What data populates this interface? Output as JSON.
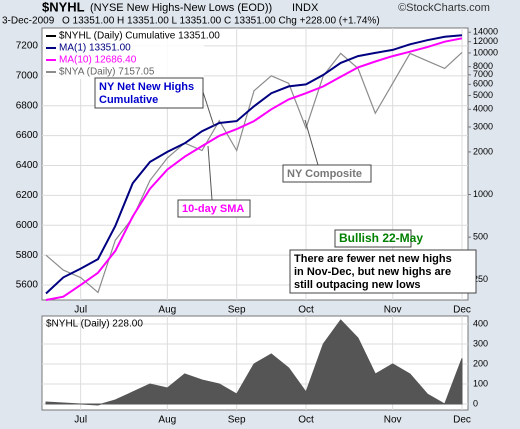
{
  "header": {
    "symbol": "$NYHL",
    "title": "(NYSE New Highs-New Lows (EOD))",
    "exchange": "INDX",
    "date": "3-Dec-2009",
    "quote": "O 13351.00 H 13351.00 L 13351.00 C 13351.00 Chg +228.00 (+1.74%)",
    "credit": "©StockCharts.com"
  },
  "chart_data": [
    {
      "type": "line",
      "legend_title": "$NYHL (Daily) Cumulative 13351.00",
      "categories": [
        null,
        null,
        "Jul",
        null,
        null,
        null,
        null,
        "Aug",
        null,
        null,
        null,
        "Sep",
        null,
        null,
        null,
        "Oct",
        null,
        null,
        null,
        null,
        "Nov",
        null,
        null,
        null,
        "Dec"
      ],
      "series": [
        {
          "name": "$NYA (Daily) 7157.05",
          "color": "#8c8c8c",
          "values": [
            5800,
            5700,
            5650,
            5550,
            5900,
            6050,
            6300,
            6450,
            6550,
            6500,
            6700,
            6500,
            6900,
            7000,
            6950,
            6650,
            7000,
            7150,
            7050,
            6750,
            6950,
            7150,
            7100,
            7050,
            7157
          ]
        },
        {
          "name": "MA(10) 12686.40",
          "color": "#ff00ff",
          "axis": "y2",
          "values": [
            180,
            190,
            230,
            280,
            400,
            700,
            1100,
            1500,
            1850,
            2200,
            2600,
            2900,
            3300,
            4000,
            4700,
            5200,
            5800,
            6800,
            7900,
            8700,
            9500,
            10200,
            11000,
            12000,
            12686
          ]
        },
        {
          "name": "MA(1) 13351.00",
          "color": "#000080",
          "axis": "y2",
          "values": [
            200,
            260,
            300,
            350,
            600,
            1200,
            1700,
            2000,
            2300,
            2800,
            3200,
            3300,
            4200,
            5200,
            5800,
            6000,
            7000,
            8500,
            9500,
            10000,
            10500,
            11500,
            12300,
            13000,
            13351
          ]
        }
      ],
      "ylim": [
        5500,
        7320
      ],
      "yticks": [
        5600,
        5800,
        6000,
        6200,
        6400,
        6600,
        6800,
        7000,
        7200
      ],
      "y2lim": [
        180,
        15000
      ],
      "y2_log": true,
      "y2ticks": [
        250,
        500,
        1000,
        2000,
        3000,
        4000,
        5000,
        6000,
        7000,
        8000,
        10000,
        12000,
        14000
      ],
      "grid": true,
      "annotations": [
        {
          "lines": [
            "NY Net New Highs",
            "Cumulative"
          ],
          "color": "#0000cc"
        },
        {
          "lines": [
            "10-day SMA"
          ],
          "color": "#ff00ff"
        },
        {
          "lines": [
            "NY Composite"
          ],
          "color": "#777777"
        },
        {
          "lines": [
            "Bullish 22-May"
          ],
          "color": "#008000"
        },
        {
          "lines": [
            "There are fewer net new highs",
            "in Nov-Dec, but new highs are",
            "still outpacing new lows"
          ],
          "color": "#000000"
        }
      ]
    },
    {
      "type": "area",
      "title": "$NYHL (Daily) 228.00",
      "color": "#555555",
      "categories": [
        null,
        null,
        "Jul",
        null,
        null,
        null,
        null,
        "Aug",
        null,
        null,
        null,
        "Sep",
        null,
        null,
        null,
        "Oct",
        null,
        null,
        null,
        null,
        "Nov",
        null,
        null,
        null,
        "Dec"
      ],
      "values": [
        10,
        5,
        0,
        -5,
        20,
        60,
        100,
        80,
        150,
        120,
        100,
        50,
        200,
        250,
        180,
        60,
        300,
        420,
        330,
        150,
        200,
        150,
        50,
        0,
        228
      ],
      "ylim": [
        -30,
        440
      ],
      "yticks": [
        0,
        100,
        200,
        300,
        400
      ],
      "grid": true
    }
  ]
}
